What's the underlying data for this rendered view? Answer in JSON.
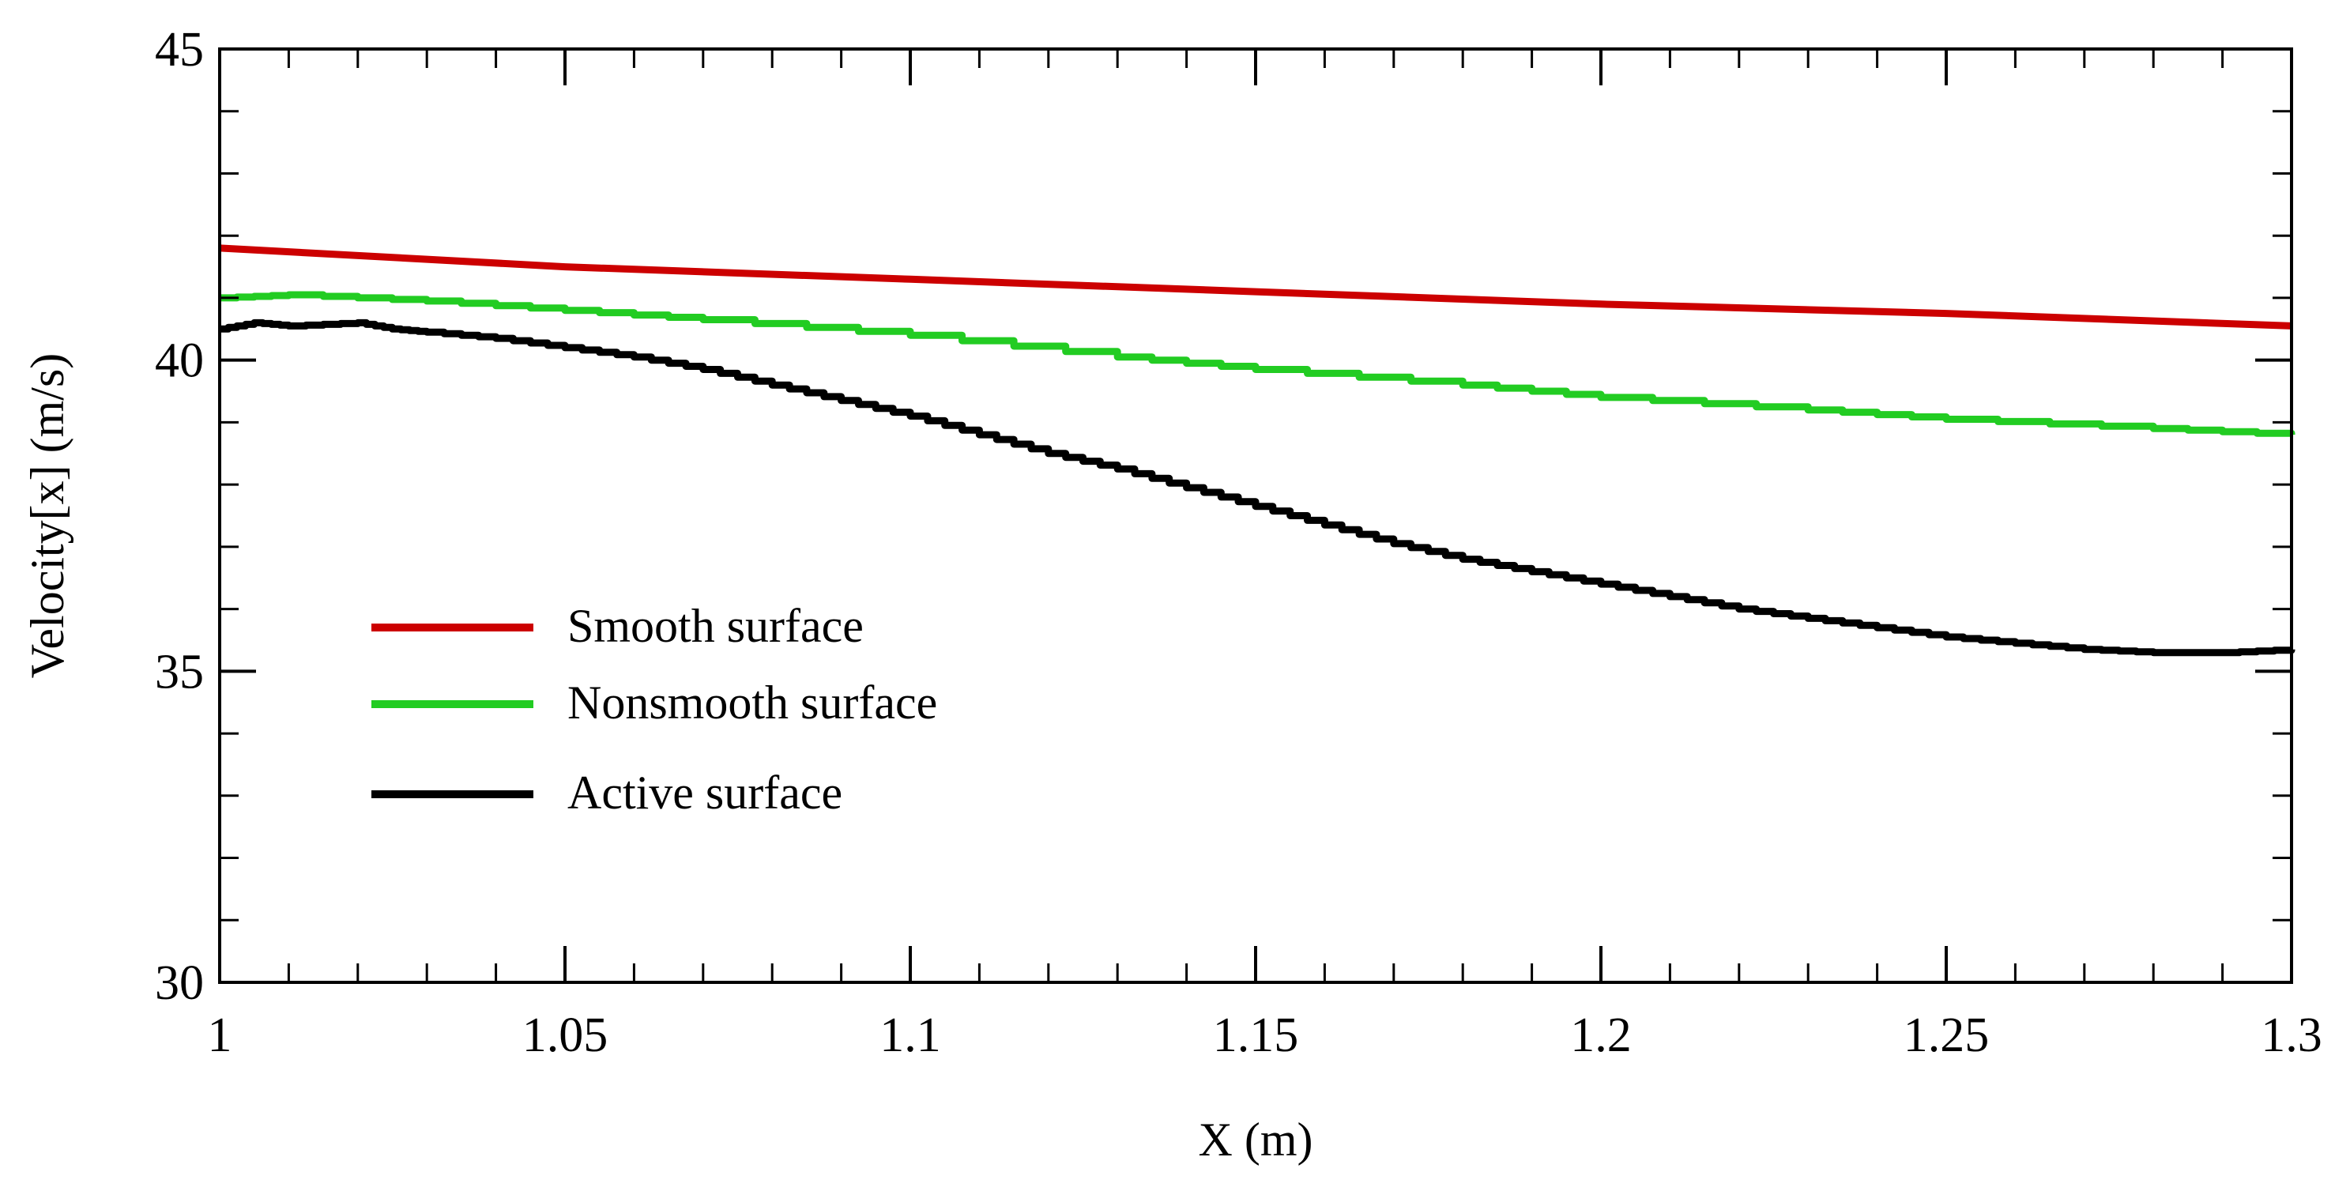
{
  "chart_data": {
    "type": "line",
    "title": "",
    "xlabel": "X (m)",
    "ylabel": "Velocity[x] (m/s)",
    "xlim": [
      1.0,
      1.3
    ],
    "ylim": [
      30,
      45
    ],
    "x_major_ticks": [
      1.0,
      1.05,
      1.1,
      1.15,
      1.2,
      1.25,
      1.3
    ],
    "x_tick_labels": [
      "1",
      "1.05",
      "1.1",
      "1.15",
      "1.2",
      "1.25",
      "1.3"
    ],
    "x_minor_step": 0.01,
    "y_major_ticks": [
      30,
      35,
      40,
      45
    ],
    "y_tick_labels": [
      "30",
      "35",
      "40",
      "45"
    ],
    "y_minor_step": 1,
    "grid": false,
    "legend_position": "center-left",
    "series": [
      {
        "name": "Smooth surface",
        "color": "#cc0000",
        "x": [
          1.0,
          1.05,
          1.1,
          1.15,
          1.2,
          1.25,
          1.3
        ],
        "y": [
          41.8,
          41.5,
          41.3,
          41.1,
          40.9,
          40.75,
          40.55
        ]
      },
      {
        "name": "Nonsmooth surface",
        "color": "#22cc22",
        "x": [
          1.0,
          1.01,
          1.03,
          1.05,
          1.07,
          1.1,
          1.13,
          1.15,
          1.18,
          1.2,
          1.23,
          1.25,
          1.28,
          1.3
        ],
        "y": [
          41.0,
          41.05,
          40.95,
          40.8,
          40.65,
          40.4,
          40.05,
          39.85,
          39.6,
          39.4,
          39.2,
          39.05,
          38.9,
          38.8
        ],
        "stepped": true
      },
      {
        "name": "Active surface",
        "color": "#000000",
        "x": [
          1.0,
          1.005,
          1.01,
          1.02,
          1.025,
          1.03,
          1.04,
          1.05,
          1.06,
          1.07,
          1.08,
          1.09,
          1.1,
          1.11,
          1.12,
          1.13,
          1.14,
          1.15,
          1.16,
          1.17,
          1.18,
          1.19,
          1.2,
          1.21,
          1.22,
          1.23,
          1.24,
          1.25,
          1.26,
          1.27,
          1.28,
          1.29,
          1.3
        ],
        "y": [
          40.5,
          40.6,
          40.55,
          40.6,
          40.5,
          40.45,
          40.35,
          40.2,
          40.05,
          39.85,
          39.6,
          39.35,
          39.1,
          38.8,
          38.5,
          38.25,
          37.95,
          37.65,
          37.35,
          37.05,
          36.8,
          36.6,
          36.4,
          36.2,
          36.0,
          35.85,
          35.7,
          35.55,
          35.45,
          35.35,
          35.3,
          35.3,
          35.35
        ],
        "stepped": true
      }
    ]
  }
}
